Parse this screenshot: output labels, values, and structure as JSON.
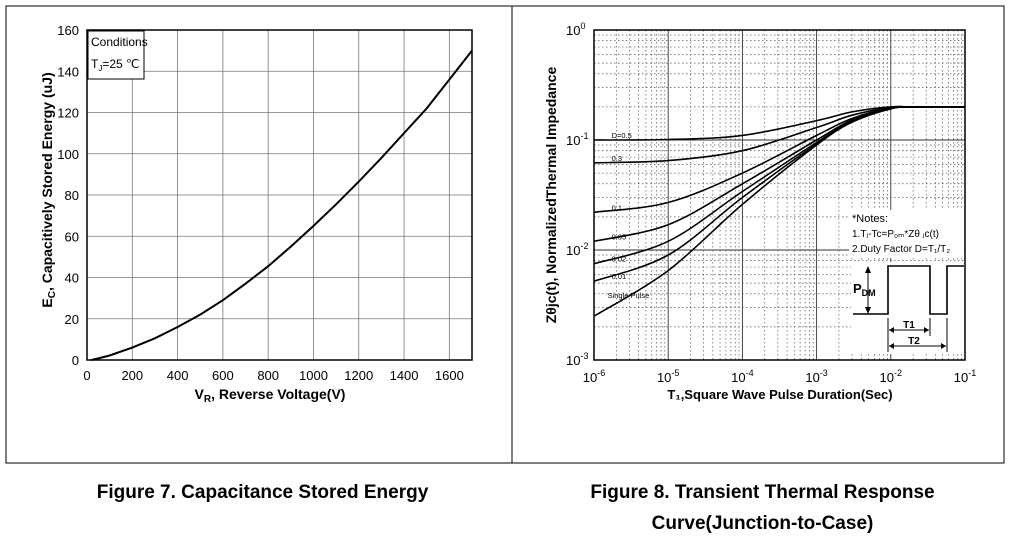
{
  "captions": {
    "fig7": "Figure 7. Capacitance Stored Energy",
    "fig8_line1": "Figure 8. Transient Thermal Response",
    "fig8_line2": "Curve(Junction-to-Case)"
  },
  "chart_data": [
    {
      "type": "line",
      "title": "",
      "xlabel_main": "V",
      "xlabel_sub": "R",
      "xlabel_rest": ", Reverse Voltage(V)",
      "ylabel_main": "E",
      "ylabel_sub": "C",
      "ylabel_rest": ", Capacitively Stored Energy (uJ)",
      "xlim": [
        0,
        1700
      ],
      "ylim": [
        0,
        160
      ],
      "xticks": [
        0,
        200,
        400,
        600,
        800,
        1000,
        1200,
        1400,
        1600
      ],
      "yticks": [
        0,
        20,
        40,
        60,
        80,
        100,
        120,
        140,
        160
      ],
      "grid": true,
      "legend_box": {
        "line1": "Conditions",
        "line2_main": "T",
        "line2_sub": "J",
        "line2_rest": "=25 ℃"
      },
      "series": [
        {
          "x": [
            20,
            50,
            100,
            200,
            300,
            400,
            500,
            600,
            700,
            800,
            900,
            1000,
            1100,
            1200,
            1300,
            1400,
            1500,
            1600,
            1700
          ],
          "y": [
            0,
            0.8,
            2.2,
            6,
            10.5,
            16,
            22,
            29,
            37,
            45.5,
            55,
            65,
            75.5,
            86.5,
            98,
            110,
            122,
            136,
            150
          ]
        }
      ]
    },
    {
      "type": "line",
      "xscale": "log",
      "yscale": "log",
      "xlabel": "T₁,Square Wave Pulse Duration(Sec)",
      "ylabel_main": "Zθjc(t), Normalized",
      "ylabel_rest": "Thermal Impedance",
      "xlim": [
        1e-06,
        0.1
      ],
      "ylim": [
        0.001,
        1
      ],
      "xtick_labels": [
        {
          "base": "10",
          "exp": "-6",
          "value": 1e-06
        },
        {
          "base": "10",
          "exp": "-5",
          "value": 1e-05
        },
        {
          "base": "10",
          "exp": "-4",
          "value": 0.0001
        },
        {
          "base": "10",
          "exp": "-3",
          "value": 0.001
        },
        {
          "base": "10",
          "exp": "-2",
          "value": 0.01
        },
        {
          "base": "10",
          "exp": "-1",
          "value": 0.1
        }
      ],
      "ytick_labels": [
        {
          "base": "10",
          "exp": "0",
          "value": 1
        },
        {
          "base": "10",
          "exp": "-1",
          "value": 0.1
        },
        {
          "base": "10",
          "exp": "-2",
          "value": 0.01
        },
        {
          "base": "10",
          "exp": "-3",
          "value": 0.001
        }
      ],
      "grid": true,
      "notes": {
        "title": "*Notes:",
        "line1": "1.Tⱼ-Tc=P₀ₘ*Zθ ⱼc(t)",
        "line2": "2.Duty Factor D=T₁/T₂"
      },
      "pulse_labels": {
        "pdm_main": "P",
        "pdm_sub": "DM",
        "t1": "T1",
        "t2": "T2"
      },
      "x": [
        1e-06,
        1e-05,
        0.0001,
        0.001,
        0.003,
        0.01,
        0.02,
        0.1
      ],
      "series": [
        {
          "name": "D=0.5",
          "label_x": 1.05e-06,
          "values": [
            0.1,
            0.101,
            0.11,
            0.15,
            0.18,
            0.2,
            0.2,
            0.2
          ]
        },
        {
          "name": "0.3",
          "label_x": 1.05e-06,
          "values": [
            0.062,
            0.065,
            0.08,
            0.13,
            0.168,
            0.198,
            0.2,
            0.2
          ]
        },
        {
          "name": "0.1",
          "label_x": 1.05e-06,
          "values": [
            0.022,
            0.027,
            0.05,
            0.11,
            0.157,
            0.195,
            0.2,
            0.2
          ]
        },
        {
          "name": "0.05",
          "label_x": 1.05e-06,
          "values": [
            0.012,
            0.017,
            0.04,
            0.1,
            0.152,
            0.194,
            0.2,
            0.2
          ]
        },
        {
          "name": "0.02",
          "label_x": 1.05e-06,
          "values": [
            0.0075,
            0.012,
            0.034,
            0.095,
            0.148,
            0.193,
            0.2,
            0.2
          ]
        },
        {
          "name": "0.01",
          "label_x": 1.05e-06,
          "values": [
            0.0052,
            0.009,
            0.03,
            0.092,
            0.146,
            0.193,
            0.2,
            0.2
          ]
        },
        {
          "name": "Single Pulse",
          "label_x": 1.05e-06,
          "values": [
            0.0025,
            0.0065,
            0.026,
            0.09,
            0.145,
            0.192,
            0.2,
            0.2
          ]
        }
      ]
    }
  ]
}
